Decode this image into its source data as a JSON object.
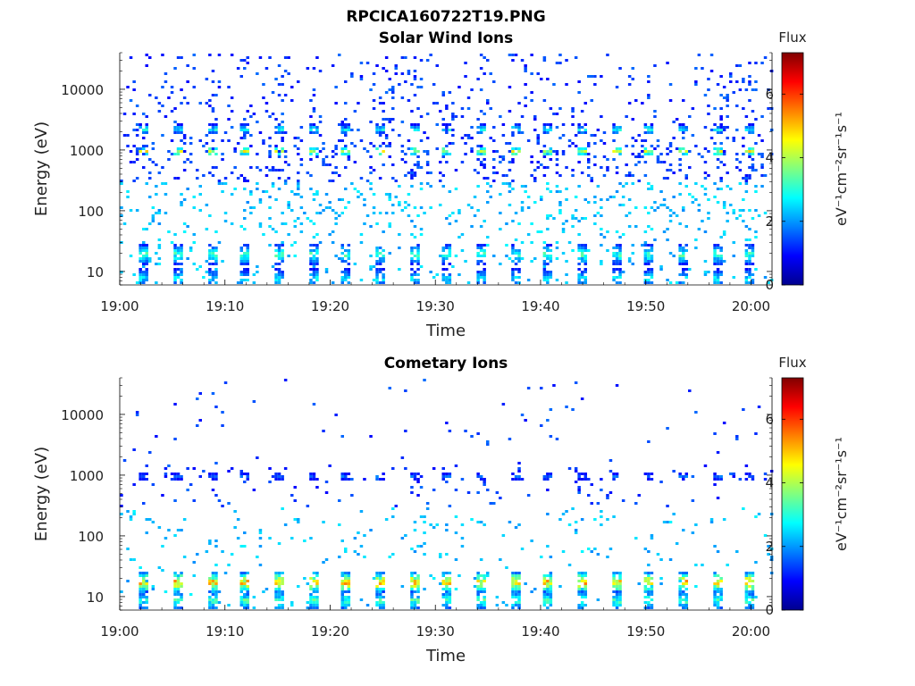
{
  "figure_title": "RPCICA160722T19.PNG",
  "chart_data": [
    {
      "type": "heatmap",
      "title": "Solar Wind Ions",
      "xlabel": "Time",
      "ylabel": "Energy (eV)",
      "x_range": [
        "19:00",
        "20:02"
      ],
      "x_ticks": [
        "19:00",
        "19:10",
        "19:20",
        "19:30",
        "19:40",
        "19:50",
        "20:00"
      ],
      "y_scale": "log",
      "y_range": [
        6,
        40000
      ],
      "y_ticks": [
        10,
        100,
        1000,
        10000
      ],
      "y_tick_labels": [
        "10",
        "100",
        "1000",
        "10000"
      ],
      "colorbar": {
        "title": "Flux",
        "label": "eV⁻¹cm⁻²sr⁻¹s⁻¹",
        "range": [
          0,
          7.3
        ],
        "ticks": [
          "0",
          "2",
          "4",
          "6"
        ],
        "colormap": "jet"
      },
      "sweep_period_min": 3.2,
      "features": [
        {
          "energy_eV": 1000,
          "intensity": 4.2,
          "description": "solar wind proton peak"
        },
        {
          "energy_eV": 2300,
          "intensity": 2.8,
          "description": "alpha particle peak"
        },
        {
          "energy_eV": 20,
          "intensity": 3.2,
          "description": "low energy band"
        },
        {
          "energy_eV": 8,
          "intensity": 2.6,
          "description": "lowest energy band"
        }
      ]
    },
    {
      "type": "heatmap",
      "title": "Cometary Ions",
      "xlabel": "Time",
      "ylabel": "Energy (eV)",
      "x_range": [
        "19:00",
        "20:02"
      ],
      "x_ticks": [
        "19:00",
        "19:10",
        "19:20",
        "19:30",
        "19:40",
        "19:50",
        "20:00"
      ],
      "y_scale": "log",
      "y_range": [
        6,
        40000
      ],
      "y_ticks": [
        10,
        100,
        1000,
        10000
      ],
      "y_tick_labels": [
        "10",
        "100",
        "1000",
        "10000"
      ],
      "colorbar": {
        "title": "Flux",
        "label": "eV⁻¹cm⁻²sr⁻¹s⁻¹",
        "range": [
          0,
          7.3
        ],
        "ticks": [
          "0",
          "2",
          "4",
          "6"
        ],
        "colormap": "jet"
      },
      "sweep_period_min": 3.2,
      "features": [
        {
          "energy_eV": 1000,
          "intensity": 1.6,
          "description": "1 keV blobs"
        },
        {
          "energy_eV": 18,
          "intensity": 5.0,
          "description": "low energy cometary ion band"
        },
        {
          "energy_eV": 9,
          "intensity": 3.2,
          "description": "lowest energy band"
        }
      ]
    }
  ]
}
